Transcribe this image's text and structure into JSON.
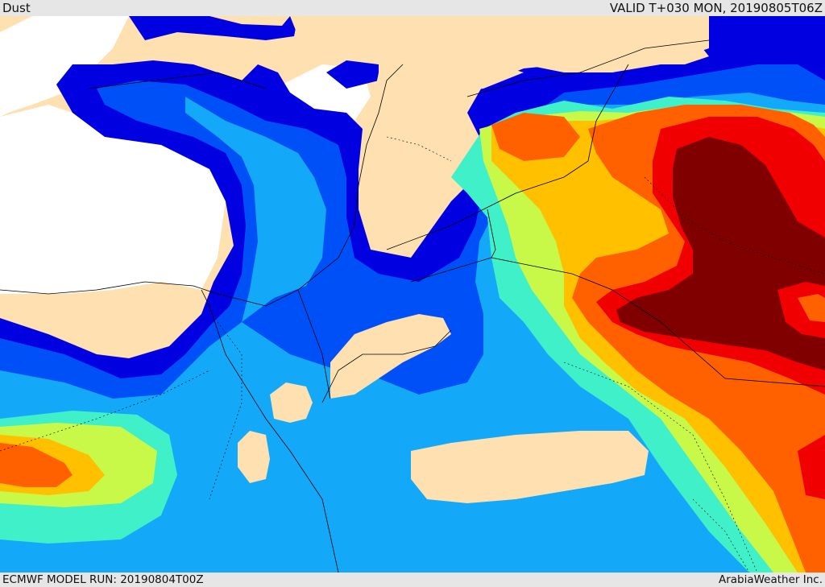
{
  "header": {
    "title": "Dust",
    "valid": "VALID T+030 MON, 20190805T06Z"
  },
  "footer": {
    "model_run": "ECMWF MODEL RUN: 20190804T00Z",
    "credit": "ArabiaWeather Inc."
  },
  "palette": {
    "land": "#ffe0b0",
    "sea": "#ffffff",
    "levels": [
      "#0000e0",
      "#0050f8",
      "#14a8f8",
      "#40f0c8",
      "#c8f848",
      "#ffc000",
      "#ff6000",
      "#f00000",
      "#800000"
    ]
  }
}
